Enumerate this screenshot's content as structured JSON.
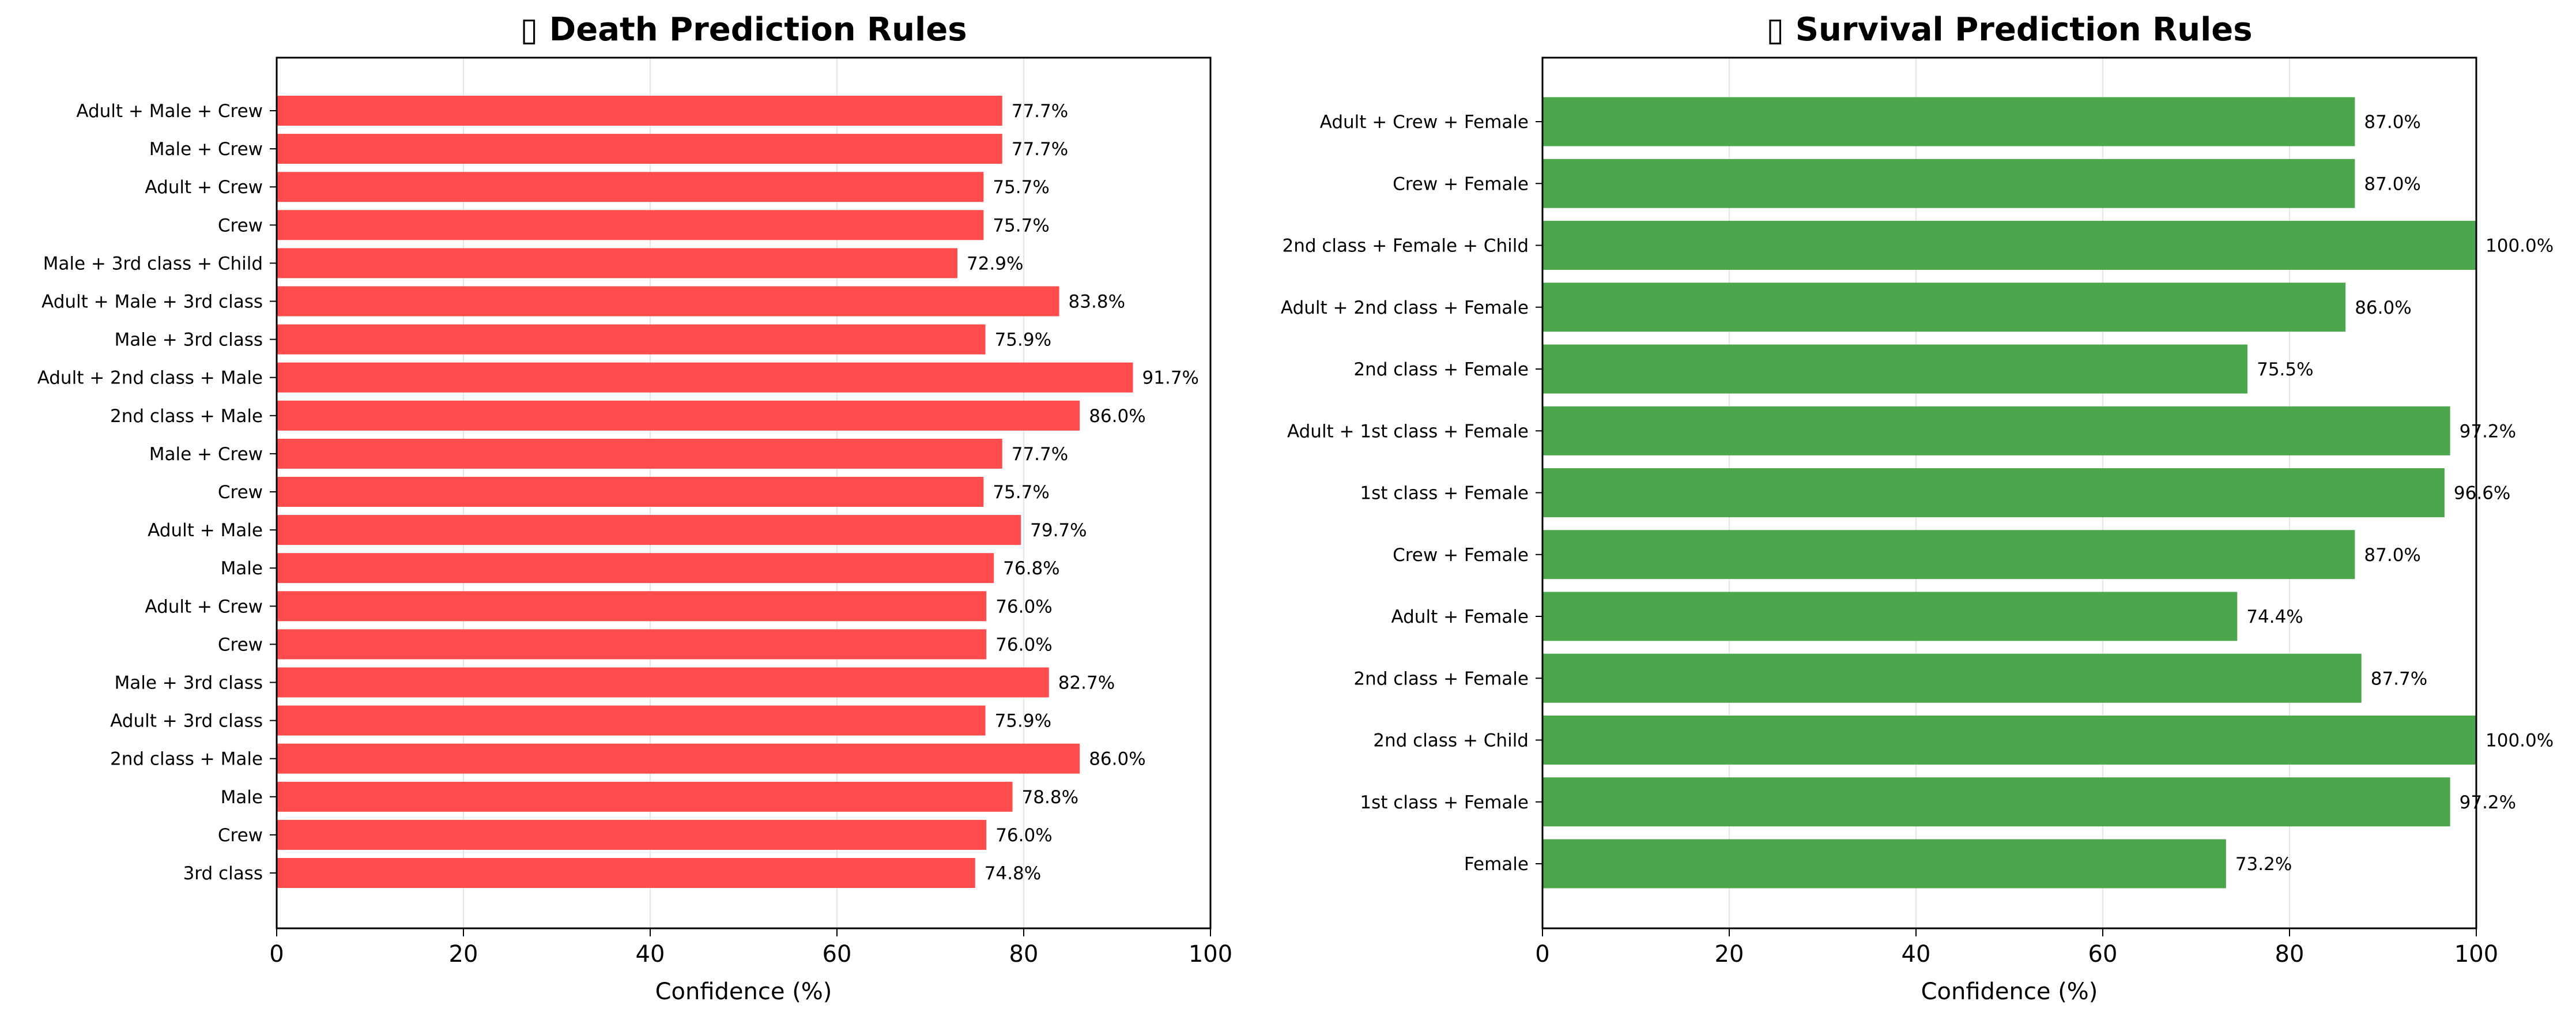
{
  "chart_data": [
    {
      "type": "bar",
      "orientation": "horizontal",
      "title_icon": "▯",
      "title": "Death Prediction Rules",
      "xlabel": "Confidence (%)",
      "ylabel": "",
      "xlim": [
        0,
        100
      ],
      "xticks": [
        "0",
        "20",
        "40",
        "60",
        "80",
        "100"
      ],
      "grid": "vertical",
      "legend": "none",
      "bar_color": "#ff4d4d",
      "categories": [
        "Adult + Male + Crew",
        "Male + Crew",
        "Adult + Crew",
        "Crew",
        "Male + 3rd class + Child",
        "Adult + Male + 3rd class",
        "Male + 3rd class",
        "Adult + 2nd class + Male",
        "2nd class + Male",
        "Male + Crew",
        "Crew",
        "Adult + Male",
        "Male",
        "Adult + Crew",
        "Crew",
        "Male + 3rd class",
        "Adult + 3rd class",
        "2nd class + Male",
        "Male",
        "Crew",
        "3rd class"
      ],
      "values": [
        77.7,
        77.7,
        75.7,
        75.7,
        72.9,
        83.8,
        75.9,
        91.7,
        86.0,
        77.7,
        75.7,
        79.7,
        76.8,
        76.0,
        76.0,
        82.7,
        75.9,
        86.0,
        78.8,
        76.0,
        74.8
      ],
      "labels": [
        "77.7%",
        "77.7%",
        "75.7%",
        "75.7%",
        "72.9%",
        "83.8%",
        "75.9%",
        "91.7%",
        "86.0%",
        "77.7%",
        "75.7%",
        "79.7%",
        "76.8%",
        "76.0%",
        "76.0%",
        "82.7%",
        "75.9%",
        "86.0%",
        "78.8%",
        "76.0%",
        "74.8%"
      ]
    },
    {
      "type": "bar",
      "orientation": "horizontal",
      "title_icon": "▯",
      "title": "Survival Prediction Rules",
      "xlabel": "Confidence (%)",
      "ylabel": "",
      "xlim": [
        0,
        100
      ],
      "xticks": [
        "0",
        "20",
        "40",
        "60",
        "80",
        "100"
      ],
      "grid": "vertical",
      "legend": "none",
      "bar_color": "#4ca64c",
      "categories": [
        "Adult + Crew + Female",
        "Crew + Female",
        "2nd class + Female + Child",
        "Adult + 2nd class + Female",
        "2nd class + Female",
        "Adult + 1st class + Female",
        "1st class + Female",
        "Crew + Female",
        "Adult + Female",
        "2nd class + Female",
        "2nd class + Child",
        "1st class + Female",
        "Female"
      ],
      "values": [
        87.0,
        87.0,
        100.0,
        86.0,
        75.5,
        97.2,
        96.6,
        87.0,
        74.4,
        87.7,
        100.0,
        97.2,
        73.2
      ],
      "labels": [
        "87.0%",
        "87.0%",
        "100.0%",
        "86.0%",
        "75.5%",
        "97.2%",
        "96.6%",
        "87.0%",
        "74.4%",
        "87.7%",
        "100.0%",
        "97.2%",
        "73.2%"
      ]
    }
  ]
}
